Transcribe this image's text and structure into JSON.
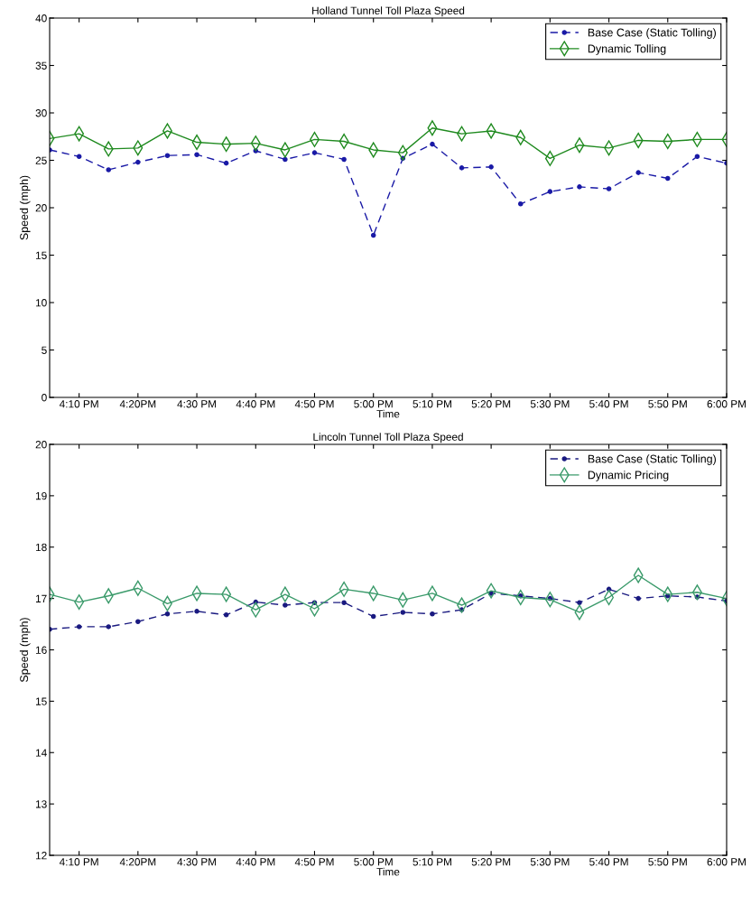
{
  "chart_data": [
    {
      "type": "line",
      "title": "Holland Tunnel Toll Plaza Speed",
      "xlabel": "Time",
      "ylabel": "Speed (mph)",
      "x": [
        16.0833,
        16.1667,
        16.25,
        16.3333,
        16.4167,
        16.5,
        16.5833,
        16.6667,
        16.75,
        16.8333,
        16.9167,
        17.0,
        17.0833,
        17.1667,
        17.25,
        17.3333,
        17.4167,
        17.5,
        17.5833,
        17.6667,
        17.75,
        17.8333,
        17.9167,
        18.0
      ],
      "xlim": [
        16.0833,
        18.0
      ],
      "xticks": [
        {
          "value": 16.1667,
          "label": "4:10 PM"
        },
        {
          "value": 16.3333,
          "label": "4:20PM"
        },
        {
          "value": 16.5,
          "label": "4:30 PM"
        },
        {
          "value": 16.6667,
          "label": "4:40 PM"
        },
        {
          "value": 16.8333,
          "label": "4:50 PM"
        },
        {
          "value": 17.0,
          "label": "5:00 PM"
        },
        {
          "value": 17.1667,
          "label": "5:10 PM"
        },
        {
          "value": 17.3333,
          "label": "5:20 PM"
        },
        {
          "value": 17.5,
          "label": "5:30 PM"
        },
        {
          "value": 17.6667,
          "label": "5:40 PM"
        },
        {
          "value": 17.8333,
          "label": "5:50 PM"
        },
        {
          "value": 18.0,
          "label": "6:00 PM"
        }
      ],
      "ylim": [
        0,
        40
      ],
      "yticks": [
        0,
        5,
        10,
        15,
        20,
        25,
        30,
        35,
        40
      ],
      "grid": false,
      "legend": "top right",
      "series": [
        {
          "name": "Base Case (Static Tolling)",
          "color": "#1a1aa6",
          "marker": "circle",
          "line_style": "dashed",
          "values": [
            26.1,
            25.4,
            24.0,
            24.8,
            25.5,
            25.6,
            24.7,
            26.0,
            25.1,
            25.8,
            25.1,
            17.1,
            25.2,
            26.7,
            24.2,
            24.3,
            20.4,
            21.7,
            22.2,
            22.0,
            23.7,
            23.1,
            25.4,
            24.7
          ]
        },
        {
          "name": "Dynamic Tolling",
          "color": "#1f8a1f",
          "marker": "diamond",
          "line_style": "solid",
          "values": [
            27.3,
            27.8,
            26.2,
            26.3,
            28.1,
            26.9,
            26.7,
            26.8,
            26.1,
            27.2,
            27.0,
            26.1,
            25.8,
            28.4,
            27.8,
            28.1,
            27.4,
            25.2,
            26.6,
            26.3,
            27.1,
            27.0,
            27.2,
            27.2
          ]
        }
      ]
    },
    {
      "type": "line",
      "title": "Lincoln Tunnel Toll Plaza Speed",
      "xlabel": "Time",
      "ylabel": "Speed (mph)",
      "x": [
        16.0833,
        16.1667,
        16.25,
        16.3333,
        16.4167,
        16.5,
        16.5833,
        16.6667,
        16.75,
        16.8333,
        16.9167,
        17.0,
        17.0833,
        17.1667,
        17.25,
        17.3333,
        17.4167,
        17.5,
        17.5833,
        17.6667,
        17.75,
        17.8333,
        17.9167,
        18.0
      ],
      "xlim": [
        16.0833,
        18.0
      ],
      "xticks": [
        {
          "value": 16.1667,
          "label": "4:10 PM"
        },
        {
          "value": 16.3333,
          "label": "4:20PM"
        },
        {
          "value": 16.5,
          "label": "4:30 PM"
        },
        {
          "value": 16.6667,
          "label": "4:40 PM"
        },
        {
          "value": 16.8333,
          "label": "4:50 PM"
        },
        {
          "value": 17.0,
          "label": "5:00 PM"
        },
        {
          "value": 17.1667,
          "label": "5:10 PM"
        },
        {
          "value": 17.3333,
          "label": "5:20 PM"
        },
        {
          "value": 17.5,
          "label": "5:30 PM"
        },
        {
          "value": 17.6667,
          "label": "5:40 PM"
        },
        {
          "value": 17.8333,
          "label": "5:50 PM"
        },
        {
          "value": 18.0,
          "label": "6:00 PM"
        }
      ],
      "ylim": [
        12,
        20
      ],
      "yticks": [
        12,
        13,
        14,
        15,
        16,
        17,
        18,
        19,
        20
      ],
      "grid": false,
      "legend": "top right",
      "series": [
        {
          "name": "Base Case (Static Tolling)",
          "color": "#1a1a80",
          "marker": "circle",
          "line_style": "dashed",
          "values": [
            16.4,
            16.45,
            16.45,
            16.55,
            16.7,
            16.75,
            16.68,
            16.93,
            16.87,
            16.92,
            16.92,
            16.65,
            16.73,
            16.7,
            16.78,
            17.1,
            17.05,
            17.0,
            16.92,
            17.18,
            17.0,
            17.05,
            17.03,
            16.95
          ]
        },
        {
          "name": "Dynamic Pricing",
          "color": "#3a9a6a",
          "marker": "diamond",
          "line_style": "solid",
          "values": [
            17.08,
            16.93,
            17.05,
            17.2,
            16.9,
            17.1,
            17.08,
            16.78,
            17.08,
            16.8,
            17.18,
            17.1,
            16.97,
            17.1,
            16.87,
            17.15,
            17.02,
            16.98,
            16.73,
            17.02,
            17.45,
            17.08,
            17.12,
            17.0
          ]
        }
      ]
    }
  ]
}
